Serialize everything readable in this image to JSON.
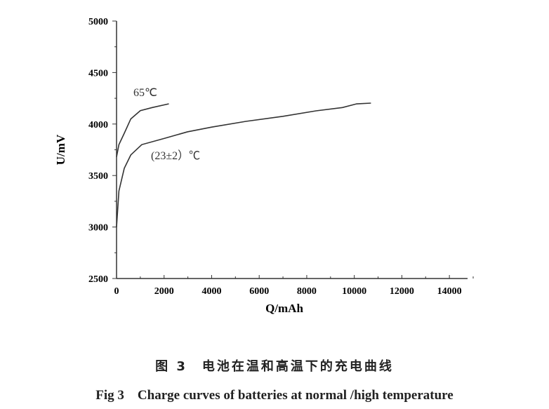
{
  "chart_data": {
    "type": "line",
    "xlabel": "Q/mAh",
    "ylabel": "U/mV",
    "xlim": [
      0,
      15000
    ],
    "ylim": [
      2500,
      5000
    ],
    "xticks": [
      0,
      2000,
      4000,
      6000,
      8000,
      10000,
      12000,
      14000
    ],
    "yticks": [
      2500,
      3000,
      3500,
      4000,
      4500,
      5000
    ],
    "grid": false,
    "series": [
      {
        "name": "65℃",
        "x": [
          0,
          100,
          325,
          600,
          1000,
          1500,
          2200
        ],
        "y": [
          3680,
          3800,
          3910,
          4050,
          4130,
          4160,
          4196
        ]
      },
      {
        "name": "(23±2）℃",
        "x": [
          0,
          100,
          325,
          600,
          1060,
          2000,
          2980,
          4000,
          5440,
          7000,
          8390,
          9500,
          10100,
          10700
        ],
        "y": [
          3000,
          3350,
          3570,
          3700,
          3800,
          3860,
          3924,
          3970,
          4026,
          4075,
          4128,
          4160,
          4196,
          4203
        ]
      }
    ],
    "color": "#333333"
  },
  "caption": {
    "cn": "图 3　电池在温和高温下的充电曲线",
    "en": "Fig 3　Charge curves of batteries at normal /high temperature"
  }
}
